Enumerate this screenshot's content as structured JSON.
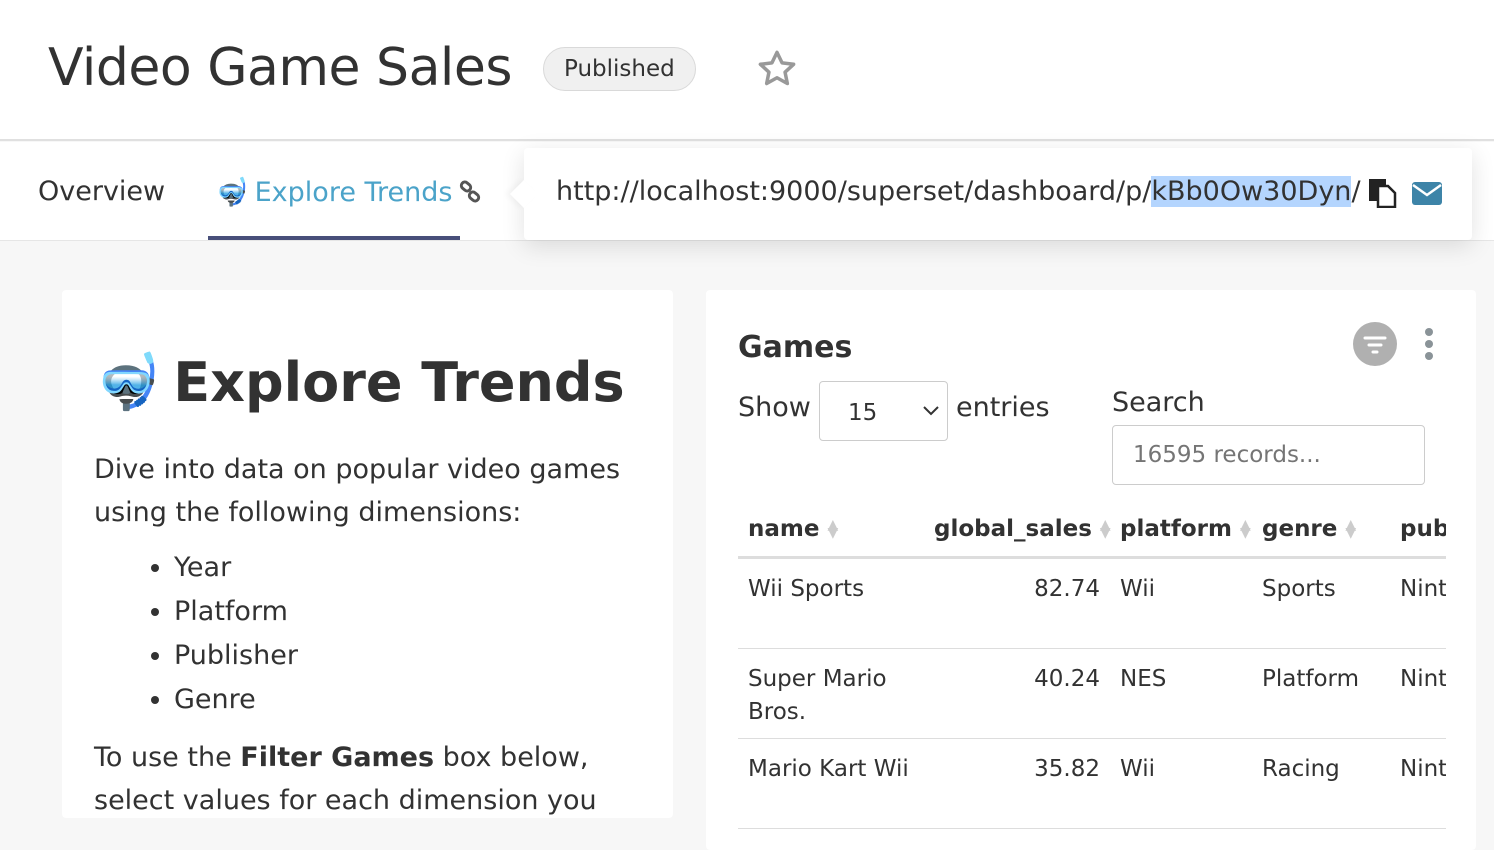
{
  "header": {
    "title": "Video Game Sales",
    "status_badge": "Published"
  },
  "tabs": [
    {
      "label": "Overview"
    },
    {
      "label": "Explore Trends",
      "active": true
    }
  ],
  "share": {
    "url_prefix": "http://localhost:9000/superset/dashboard/p/",
    "url_selected": "kBb0Ow30Dyn",
    "url_suffix": "/"
  },
  "markdown": {
    "heading": "Explore Trends",
    "intro": "Dive into data on popular video games using the following dimensions:",
    "dimensions": [
      "Year",
      "Platform",
      "Publisher",
      "Genre"
    ],
    "outro_pre": "To use the ",
    "outro_bold": "Filter Games",
    "outro_post": " box below, select values for each dimension you"
  },
  "table": {
    "title": "Games",
    "show_label": "Show",
    "page_size": "15",
    "entries_label": "entries",
    "search_label": "Search",
    "search_placeholder": "16595 records...",
    "columns": [
      "name",
      "global_sales",
      "platform",
      "genre",
      "pub"
    ],
    "rows": [
      [
        "Wii Sports",
        "82.74",
        "Wii",
        "Sports",
        "Nint"
      ],
      [
        "Super Mario Bros.",
        "40.24",
        "NES",
        "Platform",
        "Nint"
      ],
      [
        "Mario Kart Wii",
        "35.82",
        "Wii",
        "Racing",
        "Nint"
      ]
    ]
  },
  "colors": {
    "accent": "#4ba3c9",
    "tab_underline": "#484f7a",
    "mail": "#3d84a8"
  }
}
